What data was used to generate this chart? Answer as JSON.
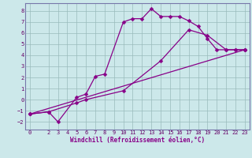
{
  "xlabel": "Windchill (Refroidissement éolien,°C)",
  "bg_color": "#cce8ea",
  "line_color": "#880088",
  "grid_color": "#99bbbb",
  "spine_color": "#7777aa",
  "tick_color": "#660066",
  "xlim": [
    -0.5,
    23.5
  ],
  "ylim": [
    -2.7,
    8.7
  ],
  "xticks": [
    0,
    2,
    3,
    4,
    5,
    6,
    7,
    8,
    9,
    10,
    11,
    12,
    13,
    14,
    15,
    16,
    17,
    18,
    19,
    20,
    21,
    22,
    23
  ],
  "yticks": [
    -2,
    -1,
    0,
    1,
    2,
    3,
    4,
    5,
    6,
    7,
    8
  ],
  "c1x": [
    0,
    2,
    3,
    5,
    6,
    7,
    8,
    10,
    11,
    12,
    13,
    14,
    15,
    16,
    17,
    18,
    19,
    20,
    21,
    22,
    23
  ],
  "c1y": [
    -1.3,
    -1.1,
    -2.0,
    0.2,
    0.5,
    2.1,
    2.3,
    7.0,
    7.3,
    7.3,
    8.2,
    7.5,
    7.5,
    7.5,
    7.1,
    6.6,
    5.5,
    4.5,
    4.5,
    4.5,
    4.5
  ],
  "c2x": [
    0,
    2,
    5,
    6,
    10,
    14,
    17,
    19,
    21,
    22,
    23
  ],
  "c2y": [
    -1.3,
    -1.1,
    -0.3,
    0.0,
    0.8,
    3.5,
    6.3,
    5.8,
    4.5,
    4.5,
    4.5
  ],
  "c3x": [
    0,
    23
  ],
  "c3y": [
    -1.3,
    4.5
  ],
  "markersize": 2.5,
  "linewidth": 0.9,
  "tick_fontsize": 5,
  "xlabel_fontsize": 5.5
}
